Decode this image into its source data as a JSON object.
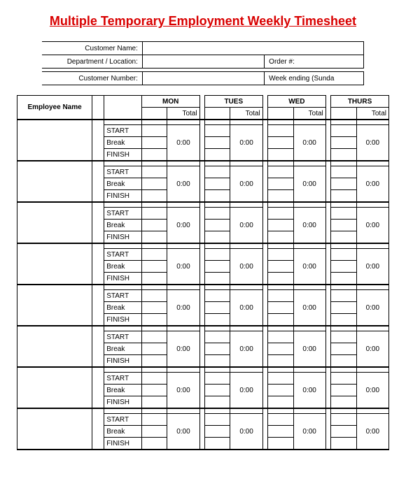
{
  "title": "Multiple Temporary Employment Weekly Timesheet",
  "header": {
    "customerNameLabel": "Customer Name:",
    "customerNameValue": "",
    "deptLabel": "Department / Location:",
    "deptValue": "",
    "orderLabel": "Order #:",
    "orderValue": "",
    "customerNumberLabel": "Customer Number:",
    "customerNumberValue": "",
    "weekEndingLabel": "Week ending (Sunda",
    "weekEndingValue": ""
  },
  "columns": {
    "employee": "Employee Name",
    "days": [
      "MON",
      "TUES",
      "WED",
      "THURS"
    ],
    "totalLabel": "Total"
  },
  "rowLabels": {
    "start": "START",
    "break": "Break",
    "finish": "FINISH"
  },
  "blocks": [
    {
      "totals": [
        "0:00",
        "0:00",
        "0:00",
        "0:00"
      ]
    },
    {
      "totals": [
        "0:00",
        "0:00",
        "0:00",
        "0:00"
      ]
    },
    {
      "totals": [
        "0:00",
        "0:00",
        "0:00",
        "0:00"
      ]
    },
    {
      "totals": [
        "0:00",
        "0:00",
        "0:00",
        "0:00"
      ]
    },
    {
      "totals": [
        "0:00",
        "0:00",
        "0:00",
        "0:00"
      ]
    },
    {
      "totals": [
        "0:00",
        "0:00",
        "0:00",
        "0:00"
      ]
    },
    {
      "totals": [
        "0:00",
        "0:00",
        "0:00",
        "0:00"
      ]
    },
    {
      "totals": [
        "0:00",
        "0:00",
        "0:00",
        "0:00"
      ]
    }
  ],
  "style": {
    "titleColor": "#d90000",
    "borderColor": "#000000",
    "background": "#ffffff",
    "fontFamily": "Arial",
    "titleFontSize": 18,
    "cellFontSize": 10
  }
}
